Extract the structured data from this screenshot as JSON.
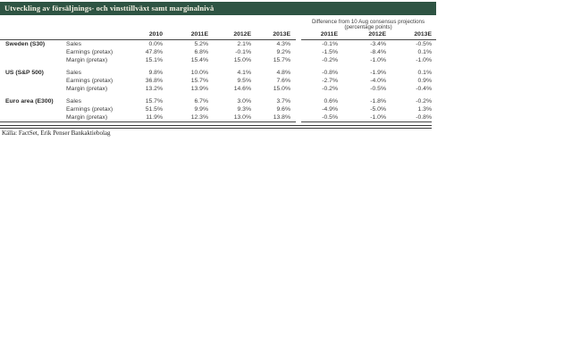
{
  "title": "Utveckling av försäljnings- och vinsttillväxt samt marginalnivå",
  "diff_header": {
    "line1": "Difference from 10 Aug consensus projections",
    "line2": "(percentage points)"
  },
  "columns": {
    "main": [
      "2010",
      "2011E",
      "2012E",
      "2013E"
    ],
    "diff": [
      "2011E",
      "2012E",
      "2013E"
    ]
  },
  "groups": [
    {
      "name": "Sweden (S30)",
      "rows": [
        {
          "label": "Sales",
          "main": [
            "0.0%",
            "5.2%",
            "2.1%",
            "4.3%"
          ],
          "diff": [
            "-0.1%",
            "-3.4%",
            "-0.5%"
          ]
        },
        {
          "label": "Earnings (pretax)",
          "main": [
            "47.8%",
            "6.8%",
            "-0.1%",
            "9.2%"
          ],
          "diff": [
            "-1.5%",
            "-8.4%",
            "0.1%"
          ]
        },
        {
          "label": "Margin (pretax)",
          "main": [
            "15.1%",
            "15.4%",
            "15.0%",
            "15.7%"
          ],
          "diff": [
            "-0.2%",
            "-1.0%",
            "-1.0%"
          ]
        }
      ]
    },
    {
      "name": "US (S&P 500)",
      "rows": [
        {
          "label": "Sales",
          "main": [
            "9.8%",
            "10.0%",
            "4.1%",
            "4.8%"
          ],
          "diff": [
            "-0.8%",
            "-1.9%",
            "0.1%"
          ]
        },
        {
          "label": "Earnings (pretax)",
          "main": [
            "36.8%",
            "15.7%",
            "9.5%",
            "7.6%"
          ],
          "diff": [
            "-2.7%",
            "-4.0%",
            "0.9%"
          ]
        },
        {
          "label": "Margin (pretax)",
          "main": [
            "13.2%",
            "13.9%",
            "14.6%",
            "15.0%"
          ],
          "diff": [
            "-0.2%",
            "-0.5%",
            "-0.4%"
          ]
        }
      ]
    },
    {
      "name": "Euro area (E300)",
      "rows": [
        {
          "label": "Sales",
          "main": [
            "15.7%",
            "6.7%",
            "3.0%",
            "3.7%"
          ],
          "diff": [
            "0.6%",
            "-1.8%",
            "-0.2%"
          ]
        },
        {
          "label": "Earnings (pretax)",
          "main": [
            "51.5%",
            "9.9%",
            "9.3%",
            "9.6%"
          ],
          "diff": [
            "-4.9%",
            "-5.0%",
            "1.3%"
          ]
        },
        {
          "label": "Margin (pretax)",
          "main": [
            "11.9%",
            "12.3%",
            "13.0%",
            "13.8%"
          ],
          "diff": [
            "-0.5%",
            "-1.0%",
            "-0.8%"
          ]
        }
      ]
    }
  ],
  "source": "Källa: FactSet, Erik Penser Bankaktiebolag",
  "colors": {
    "header_bg": "#2e5443",
    "header_text": "#f3f0e2",
    "rule": "#474747",
    "text": "#3f3f3f"
  }
}
